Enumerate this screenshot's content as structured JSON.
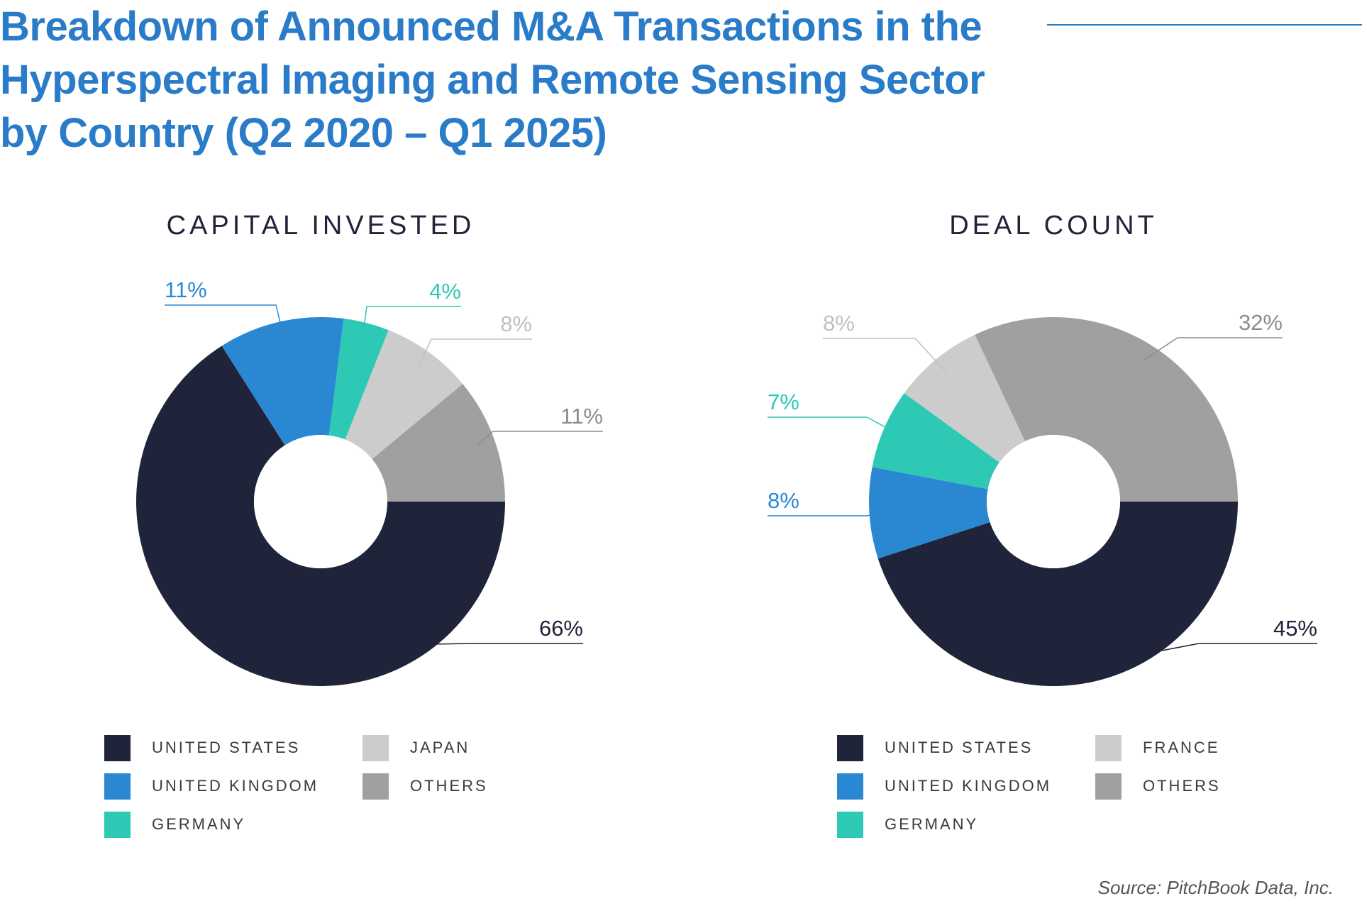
{
  "title": {
    "lines": [
      "Breakdown of Announced M&A Transactions in the",
      "Hyperspectral Imaging and Remote Sensing Sector",
      "by Country (Q2 2020 – Q1 2025)"
    ]
  },
  "colors": {
    "title": "#2a7bc8",
    "united_states": "#20243a",
    "united_kingdom": "#2a88d2",
    "germany": "#2ec9b4",
    "light_gray": "#cccccc",
    "others": "#a0a0a0"
  },
  "chart_data": [
    {
      "type": "pie",
      "subtype": "donut",
      "title": "CAPITAL INVESTED",
      "categories": [
        "UNITED STATES",
        "UNITED KINGDOM",
        "GERMANY",
        "JAPAN",
        "OTHERS"
      ],
      "values": [
        66,
        11,
        4,
        8,
        11
      ],
      "labels": [
        "66%",
        "11%",
        "4%",
        "8%",
        "11%"
      ],
      "colors": [
        "#20243a",
        "#2a88d2",
        "#2ec9b4",
        "#cccccc",
        "#a0a0a0"
      ],
      "label_colors": [
        "#20243a",
        "#2a88d2",
        "#2ec9b4",
        "#c0c0c0",
        "#8c8c8c"
      ],
      "legend_position": "bottom"
    },
    {
      "type": "pie",
      "subtype": "donut",
      "title": "DEAL COUNT",
      "categories": [
        "UNITED STATES",
        "UNITED KINGDOM",
        "GERMANY",
        "FRANCE",
        "OTHERS"
      ],
      "values": [
        45,
        8,
        7,
        8,
        32
      ],
      "labels": [
        "45%",
        "8%",
        "7%",
        "8%",
        "32%"
      ],
      "colors": [
        "#20243a",
        "#2a88d2",
        "#2ec9b4",
        "#cccccc",
        "#a0a0a0"
      ],
      "label_colors": [
        "#20243a",
        "#2a88d2",
        "#2ec9b4",
        "#c0c0c0",
        "#8c8c8c"
      ],
      "legend_position": "bottom"
    }
  ],
  "source": "Source: PitchBook Data, Inc."
}
